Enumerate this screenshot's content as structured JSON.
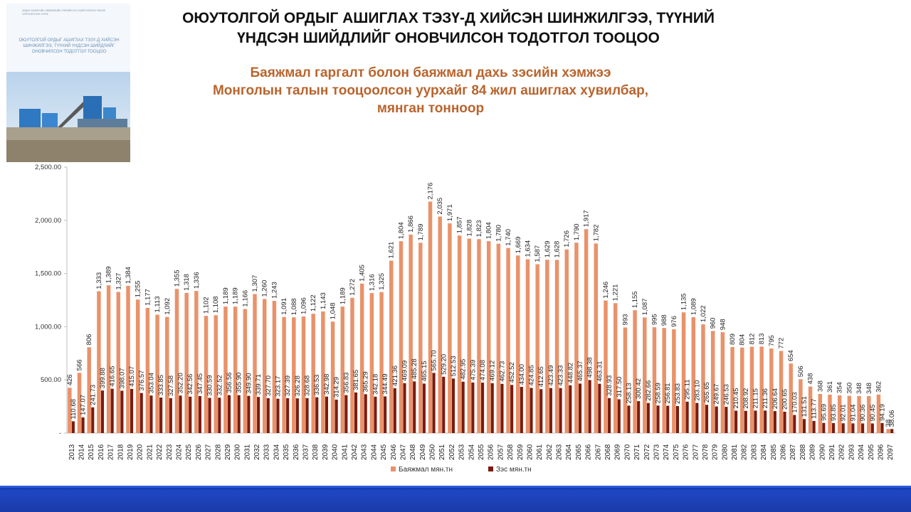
{
  "header": {
    "title_line1": "ОЮУТОЛГОЙ ОРДЫГ АШИГЛАХ ТЭЗҮ-Д ХИЙСЭН ШИНЖИЛГЭЭ, ТҮҮНИЙ",
    "title_line2": "ҮНДСЭН ШИЙДЛИЙГ ОНОВЧИЛСОН ТОДОТГОЛ ТООЦОО"
  },
  "cover": {
    "small_text": "ЭРДЭС БАЯЛГИЙН ЗӨВЛӨЛИЙН ТӨРИЙН БУС БАЙГУУЛЛАГА ТӨСӨЛ ХЭРЭГЖҮҮЛЭХ НЭГЖ",
    "title": "ОЮУТОЛГОЙ ОРДЫГ АШИГЛАХ ТЭЗҮ-Д ХИЙСЭН ШИНЖИЛГЭЭ, ТҮҮНИЙ ҮНДСЭН ШИЙДЛИЙГ ОНОВЧИЛСОН ТОДОТГОЛ ТООЦОО"
  },
  "colors": {
    "series1": "#e9926a",
    "series2": "#7a1c10",
    "subtitle": "#b9642d",
    "axis": "#bfbfbf",
    "footer": "#1a3aa8"
  },
  "chart_data": {
    "type": "bar",
    "title_lines": [
      "Баяжмал гаргалт болон баяжмал дахь зэсийн хэмжээ",
      "Монголын талын тооцоолсон уурхайг 84 жил ашиглах хувилбар,",
      "мянган тонноор"
    ],
    "xlabel": "",
    "ylabel": "",
    "ylim": [
      0,
      2500
    ],
    "y_ticks": [
      "-",
      "500.00",
      "1,000.00",
      "1,500.00",
      "2,000.00",
      "2,500.00"
    ],
    "y_tick_values": [
      0,
      500,
      1000,
      1500,
      2000,
      2500
    ],
    "legend_position": "bottom",
    "categories": [
      "2013",
      "2014",
      "2015",
      "2016",
      "2017",
      "2018",
      "2019",
      "2020",
      "2021",
      "2022",
      "2023",
      "2024",
      "2025",
      "2026",
      "2027",
      "2028",
      "2029",
      "2030",
      "2031",
      "2032",
      "2033",
      "2034",
      "2035",
      "2036",
      "2037",
      "2038",
      "2039",
      "2040",
      "2041",
      "2042",
      "2043",
      "2044",
      "2045",
      "2046",
      "2047",
      "2048",
      "2049",
      "2050",
      "2051",
      "2052",
      "2053",
      "2054",
      "2055",
      "2056",
      "2057",
      "2058",
      "2059",
      "2060",
      "2061",
      "2062",
      "2063",
      "2064",
      "2065",
      "2066",
      "2067",
      "2068",
      "2069",
      "2070",
      "2071",
      "2072",
      "2073",
      "2074",
      "2075",
      "2076",
      "2077",
      "2078",
      "2079",
      "2080",
      "2081",
      "2082",
      "2083",
      "2084",
      "2085",
      "2086",
      "2087",
      "2088",
      "2089",
      "2090",
      "2091",
      "2092",
      "2093",
      "2094",
      "2095",
      "2096",
      "2097"
    ],
    "series": [
      {
        "name": "Баяжмал мян.тн",
        "values": [
          426,
          566,
          806,
          1333,
          1389,
          1327,
          1384,
          1255,
          1177,
          1113,
          1092,
          1355,
          1318,
          1336,
          1102,
          1108,
          1189,
          1189,
          1166,
          1307,
          1260,
          1243,
          1091,
          1088,
          1096,
          1122,
          1143,
          1048,
          1189,
          1272,
          1405,
          1316,
          1325,
          1621,
          1804,
          1866,
          1789,
          2176,
          2035,
          1971,
          1857,
          1828,
          1823,
          1804,
          1780,
          1740,
          1669,
          1634,
          1587,
          1629,
          1628,
          1726,
          1790,
          1917,
          1782,
          1246,
          1221,
          993,
          1155,
          1087,
          995,
          988,
          976,
          1135,
          1089,
          1022,
          960,
          948,
          809,
          804,
          812,
          813,
          795,
          772,
          654,
          506,
          438,
          368,
          361,
          354,
          350,
          348,
          348,
          362,
          38
        ],
        "labels": [
          "426",
          "566",
          "806",
          "1,333",
          "1,389",
          "1,327",
          "1,384",
          "1,255",
          "1,177",
          "1,113",
          "1,092",
          "1,355",
          "1,318",
          "1,336",
          "1,102",
          "1,108",
          "1,189",
          "1,189",
          "1,166",
          "1,307",
          "1,260",
          "1,243",
          "1,091",
          "1,088",
          "1,096",
          "1,122",
          "1,143",
          "1,048",
          "1,189",
          "1,272",
          "1,405",
          "1,316",
          "1,325",
          "1,621",
          "1,804",
          "1,866",
          "1,789",
          "2,176",
          "2,035",
          "1,971",
          "1,857",
          "1,828",
          "1,823",
          "1,804",
          "1,780",
          "1,740",
          "1,669",
          "1,634",
          "1,587",
          "1,629",
          "1,628",
          "1,726",
          "1,790",
          "1,917",
          "1,782",
          "1,246",
          "1,221",
          "993",
          "1,155",
          "1,087",
          "995",
          "988",
          "976",
          "1,135",
          "1,089",
          "1,022",
          "960",
          "948",
          "809",
          "804",
          "812",
          "813",
          "795",
          "772",
          "654",
          "506",
          "438",
          "368",
          "361",
          "354",
          "350",
          "348",
          "348",
          "362",
          "38"
        ]
      },
      {
        "name": "Зэс мян.тн",
        "values": [
          110.68,
          147.07,
          241.73,
          399.88,
          416.65,
          398.07,
          415.07,
          376.57,
          353.04,
          333.85,
          327.58,
          352.2,
          342.56,
          347.45,
          330.59,
          332.52,
          356.56,
          355.9,
          349.9,
          339.71,
          327.7,
          323.17,
          327.39,
          326.28,
          328.68,
          336.53,
          342.98,
          314.29,
          356.83,
          381.65,
          365.29,
          342.18,
          344.49,
          421.36,
          469.09,
          485.28,
          465.15,
          565.7,
          529.2,
          512.53,
          482.95,
          475.39,
          474.08,
          469.12,
          462.73,
          452.52,
          434.0,
          424.85,
          412.65,
          423.49,
          423.33,
          448.82,
          465.37,
          498.38,
          463.31,
          328.93,
          317.5,
          258.13,
          300.42,
          282.66,
          258.59,
          256.81,
          253.83,
          295.11,
          283.1,
          265.65,
          249.67,
          246.53,
          210.45,
          208.92,
          211.15,
          211.36,
          206.64,
          200.65,
          170.03,
          131.51,
          113.77,
          95.69,
          93.85,
          92.01,
          91.04,
          90.36,
          90.45,
          94.19,
          38.06
        ],
        "labels": [
          "110.68",
          "147.07",
          "241.73",
          "399.88",
          "416.65",
          "398.07",
          "415.07",
          "376.57",
          "353.04",
          "333.85",
          "327.58",
          "352.20",
          "342.56",
          "347.45",
          "330.59",
          "332.52",
          "356.56",
          "355.90",
          "349.90",
          "339.71",
          "327.70",
          "323.17",
          "327.39",
          "326.28",
          "328.68",
          "336.53",
          "342.98",
          "314.29",
          "356.83",
          "381.65",
          "365.29",
          "342.18",
          "344.49",
          "421.36",
          "469.09",
          "485.28",
          "465.15",
          "565.70",
          "529.20",
          "512.53",
          "482.95",
          "475.39",
          "474.08",
          "469.12",
          "462.73",
          "452.52",
          "434.00",
          "424.85",
          "412.65",
          "423.49",
          "423.33",
          "448.82",
          "465.37",
          "498.38",
          "463.31",
          "328.93",
          "317.50",
          "258.13",
          "300.42",
          "282.66",
          "258.59",
          "256.81",
          "253.83",
          "295.11",
          "283.10",
          "265.65",
          "249.67",
          "246.53",
          "210.45",
          "208.92",
          "211.15",
          "211.36",
          "206.64",
          "200.65",
          "170.03",
          "131.51",
          "113.77",
          "95.69",
          "93.85",
          "92.01",
          "91.04",
          "90.36",
          "90.45",
          "94.19",
          "38.06"
        ]
      }
    ]
  }
}
